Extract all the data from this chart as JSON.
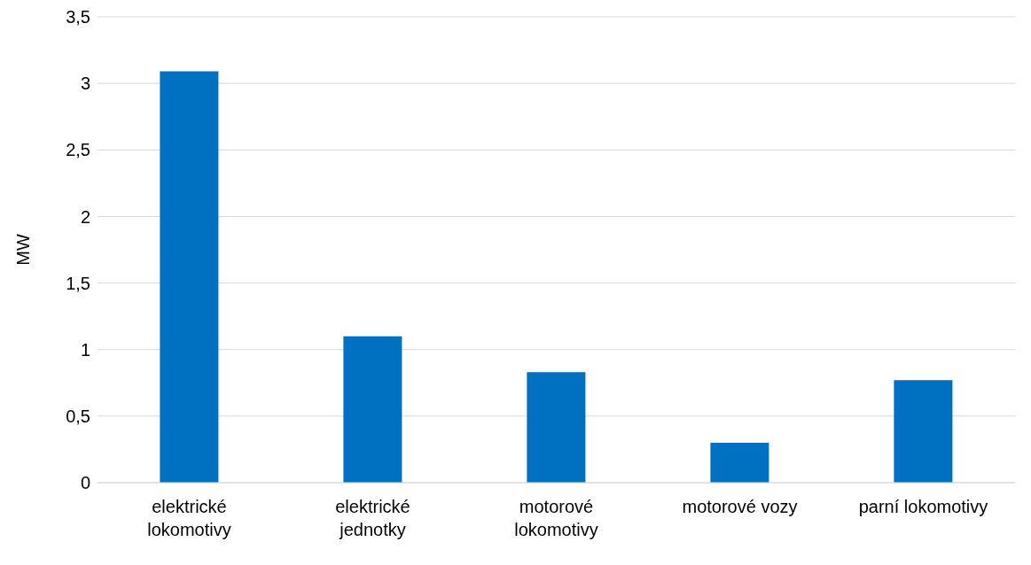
{
  "chart_data": {
    "type": "bar",
    "ylabel": "MW",
    "categories": [
      "elektrické lokomotivy",
      "elektrické jednotky",
      "motorové lokomotivy",
      "motorové vozy",
      "parní lokomotivy"
    ],
    "values": [
      3.09,
      1.1,
      0.83,
      0.3,
      0.77
    ],
    "color": "#0070c0",
    "ylim": [
      0,
      3.5
    ],
    "yticks": [
      0,
      {
        "value": 0.5,
        "label": "0,5"
      },
      1,
      {
        "value": 1.5,
        "label": "1,5"
      },
      2,
      {
        "value": 2.5,
        "label": "2,5"
      },
      3,
      {
        "value": 3.5,
        "label": "3,5"
      }
    ],
    "grid": "y"
  }
}
